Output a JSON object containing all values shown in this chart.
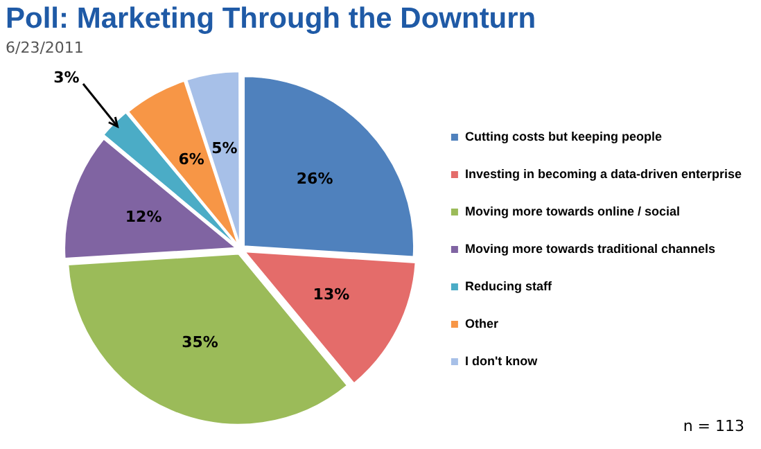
{
  "chart_data": {
    "type": "pie",
    "title": "Poll: Marketing Through the Downturn",
    "subtitle": "6/23/2011",
    "categories": [
      "Cutting costs but keeping people",
      "Investing in becoming a data-driven enterprise",
      "Moving more towards online / social",
      "Moving more towards traditional channels",
      "Reducing staff",
      "Other",
      "I don't know"
    ],
    "values": [
      26,
      13,
      35,
      12,
      3,
      6,
      5
    ],
    "value_labels": [
      "26%",
      "13%",
      "35%",
      "12%",
      "3%",
      "6%",
      "5%"
    ],
    "colors": [
      "#4f81bd",
      "#e46c6a",
      "#9bbb59",
      "#8064a2",
      "#4bacc6",
      "#f79646",
      "#a7c0e8"
    ],
    "legend": "right",
    "annotations": [
      "n = 113"
    ]
  }
}
